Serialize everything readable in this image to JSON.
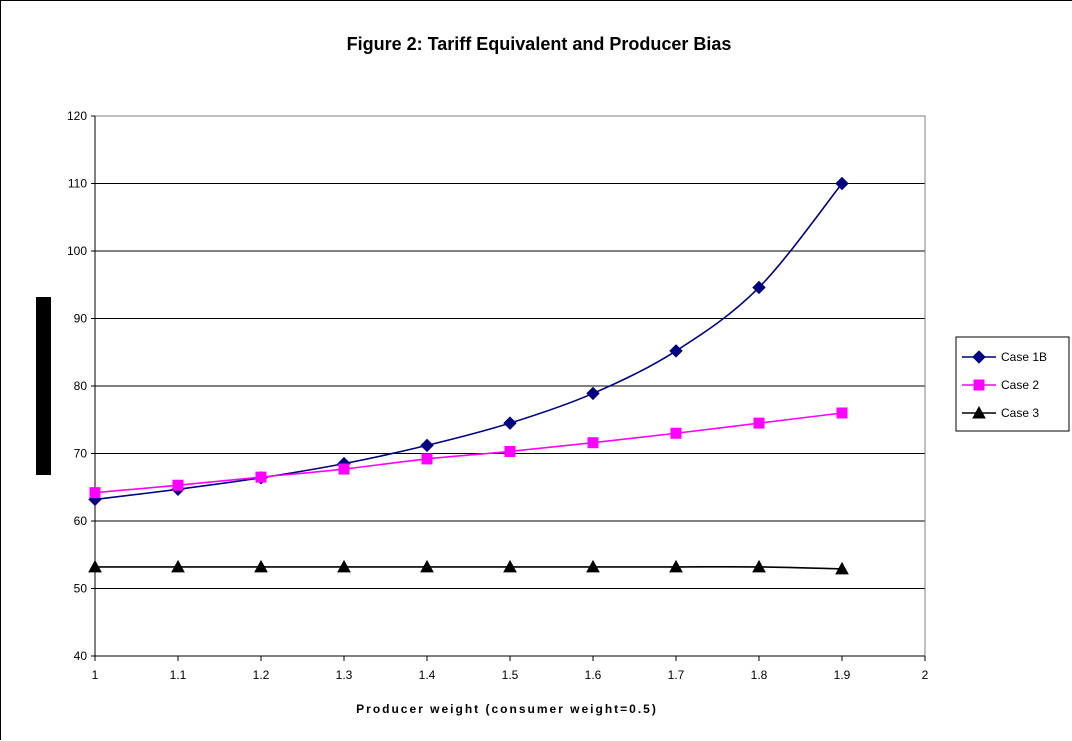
{
  "chart_data": {
    "type": "line",
    "title": "Figure 2: Tariff Equivalent and Producer Bias",
    "xlabel": "Producer weight (consumer weight=0.5)",
    "ylabel": "",
    "xlim": [
      1,
      2
    ],
    "ylim": [
      40,
      120
    ],
    "xticks": [
      "1",
      "1.1",
      "1.2",
      "1.3",
      "1.4",
      "1.5",
      "1.6",
      "1.7",
      "1.8",
      "1.9",
      "2"
    ],
    "yticks": [
      "40",
      "50",
      "60",
      "70",
      "80",
      "90",
      "100",
      "110",
      "120"
    ],
    "grid": "horizontal",
    "legend_position": "right",
    "x": [
      1,
      1.1,
      1.2,
      1.3,
      1.4,
      1.5,
      1.6,
      1.7,
      1.8,
      1.9
    ],
    "series": [
      {
        "name": "Case 1B",
        "color": "#000080",
        "marker": "diamond",
        "values": [
          63.2,
          64.7,
          66.4,
          68.5,
          71.2,
          74.5,
          78.9,
          85.2,
          94.6,
          110.0
        ]
      },
      {
        "name": "Case 2",
        "color": "#ff00ff",
        "marker": "square",
        "values": [
          64.2,
          65.3,
          66.5,
          67.7,
          69.2,
          70.3,
          71.6,
          73.0,
          74.5,
          76.0
        ]
      },
      {
        "name": "Case 3",
        "color": "#000000",
        "marker": "triangle",
        "values": [
          53.2,
          53.2,
          53.2,
          53.2,
          53.2,
          53.2,
          53.2,
          53.2,
          53.2,
          52.9
        ]
      }
    ]
  }
}
